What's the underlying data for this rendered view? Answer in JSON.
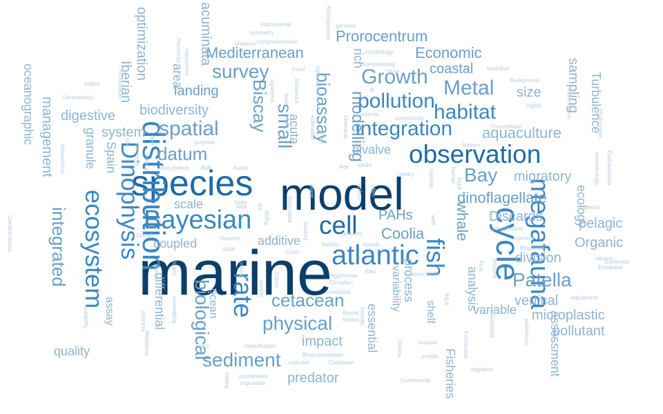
{
  "colors": {
    "c1": "#0b3f6b",
    "c2": "#1f6aa8",
    "c3": "#3b87c2",
    "c4": "#6a9fc8",
    "c5": "#8fb4d2",
    "c6": "#b3cbe0"
  },
  "words": [
    "marine",
    "model",
    "species",
    "distribution",
    "Dinophysis",
    "ecosystem",
    "cycle",
    "megafauna",
    "fish",
    "atlantic",
    "cell",
    "observation",
    "Bayesian",
    "rate",
    "integration",
    "pollution",
    "habitat",
    "Metal",
    "Growth",
    "modelling",
    "bioassay",
    "small",
    "survey",
    "spatial",
    "datum",
    "integrated",
    "Biscay",
    "sediment",
    "cetacean",
    "physical",
    "biological",
    "Patella",
    "Bay",
    "dinoflagellate",
    "whale",
    "Coolia",
    "PAHs",
    "Prorocentrum",
    "Economic",
    "coastal",
    "Mediterranean",
    "landing",
    "biodiversity",
    "digestive",
    "system",
    "Spain",
    "granule",
    "management",
    "oceanographic",
    "Iberian",
    "optimization",
    "area",
    "acuminata",
    "acuta",
    "rich",
    "bivalve",
    "aquaculture",
    "size",
    "sampling",
    "Turbulence",
    "migratory",
    "ecology",
    "pelagic",
    "Organic",
    "division",
    "vertical",
    "microplastic",
    "pollutant",
    "assessment",
    "Discards",
    "analysis",
    "variable",
    "Fisheries",
    "shelf",
    "process",
    "variability",
    "essential",
    "impact",
    "predator",
    "additive",
    "coupled",
    "scale",
    "ocean",
    "differential",
    "assay",
    "quality",
    "instrumental",
    "cytometry",
    "cryopreservation",
    "distance",
    "Peninsula",
    "malayensis",
    "output",
    "Generalised",
    "Archipelago",
    "Food",
    "behaviour",
    "ciguatera",
    "deep",
    "flow",
    "genome",
    "Anthropocene",
    "repercussion",
    "cryobiology",
    "biomonitoring",
    "DVM",
    "fit",
    "evolution",
    "Background",
    "dependence",
    "Highly",
    "Hydrolysate",
    "ecotoxicology",
    "Euphausiacea",
    "dispersal",
    "Endemics",
    "Ecospace",
    "service",
    "adjustment",
    "preference",
    "Bisphenol",
    "earning",
    "Alkylphenols",
    "Fissurellidae",
    "Baleen",
    "connectivity",
    "Crustacea",
    "Chemical",
    "estimation",
    "index",
    "Age",
    "Verde",
    "Canary",
    "Galician",
    "human",
    "Input",
    "web",
    "allen",
    "mollusc",
    "ellage",
    "beaked",
    "Automated",
    "Aoute",
    "Bulk",
    "disturbance",
    "tropical",
    "fleet",
    "hemolytic",
    "site",
    "purpose",
    "Hierarchical",
    "alga",
    "biota",
    "ant",
    "diving",
    "invasion",
    "Adult",
    "benthic",
    "Islands",
    "acoustic",
    "Costs",
    "Aggressive",
    "Circadian",
    "mediated",
    "Rias",
    "invasive",
    "health",
    "Global",
    "island",
    "climate",
    "critical",
    "Cohort",
    "sample",
    "diurnal",
    "nested",
    "Density",
    "Diobria",
    "INLA",
    "Gastropoda",
    "Formicidae",
    "vacuole",
    "protein",
    "Commercial",
    "migration",
    "Fine",
    "enzyme",
    "suitability",
    "structure",
    "assembling",
    "Medalena",
    "Cabo",
    "classification",
    "Bioaccumulation",
    "indicator",
    "Caribbean",
    "coordinated",
    "imputation",
    "fishing",
    "Gambierdiscus"
  ]
}
